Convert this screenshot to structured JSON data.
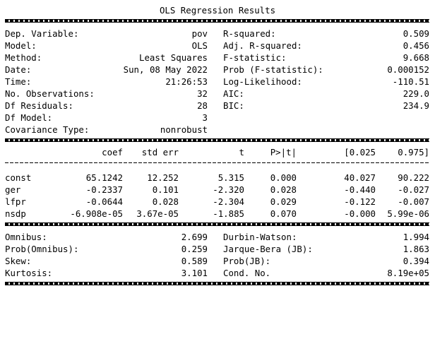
{
  "title": "OLS Regression Results",
  "summary": {
    "left": [
      {
        "label": "Dep. Variable:",
        "value": "pov"
      },
      {
        "label": "Model:",
        "value": "OLS"
      },
      {
        "label": "Method:",
        "value": "Least Squares"
      },
      {
        "label": "Date:",
        "value": "Sun, 08 May 2022"
      },
      {
        "label": "Time:",
        "value": "21:26:53"
      },
      {
        "label": "No. Observations:",
        "value": "32"
      },
      {
        "label": "Df Residuals:",
        "value": "28"
      },
      {
        "label": "Df Model:",
        "value": "3"
      },
      {
        "label": "Covariance Type:",
        "value": "nonrobust"
      }
    ],
    "right": [
      {
        "label": "R-squared:",
        "value": "0.509"
      },
      {
        "label": "Adj. R-squared:",
        "value": "0.456"
      },
      {
        "label": "F-statistic:",
        "value": "9.668"
      },
      {
        "label": "Prob (F-statistic):",
        "value": "0.000152"
      },
      {
        "label": "Log-Likelihood:",
        "value": "-110.51"
      },
      {
        "label": "AIC:",
        "value": "229.0"
      },
      {
        "label": "BIC:",
        "value": "234.9"
      }
    ]
  },
  "coef_table": {
    "headers": [
      "coef",
      "std err",
      "t",
      "P>|t|",
      "[0.025",
      "0.975]"
    ],
    "rows": [
      {
        "name": "const",
        "values": [
          "65.1242",
          "12.252",
          "5.315",
          "0.000",
          "40.027",
          "90.222"
        ]
      },
      {
        "name": "ger",
        "values": [
          "-0.2337",
          "0.101",
          "-2.320",
          "0.028",
          "-0.440",
          "-0.027"
        ]
      },
      {
        "name": "lfpr",
        "values": [
          "-0.0644",
          "0.028",
          "-2.304",
          "0.029",
          "-0.122",
          "-0.007"
        ]
      },
      {
        "name": "nsdp",
        "values": [
          "-6.908e-05",
          "3.67e-05",
          "-1.885",
          "0.070",
          "-0.000",
          "5.99e-06"
        ]
      }
    ]
  },
  "diagnostics": {
    "left": [
      {
        "label": "Omnibus:",
        "value": "2.699"
      },
      {
        "label": "Prob(Omnibus):",
        "value": "0.259"
      },
      {
        "label": "Skew:",
        "value": "0.589"
      },
      {
        "label": "Kurtosis:",
        "value": "3.101"
      }
    ],
    "right": [
      {
        "label": "Durbin-Watson:",
        "value": "1.994"
      },
      {
        "label": "Jarque-Bera (JB):",
        "value": "1.863"
      },
      {
        "label": "Prob(JB):",
        "value": "0.394"
      },
      {
        "label": "Cond. No.",
        "value": "8.19e+05"
      }
    ]
  }
}
